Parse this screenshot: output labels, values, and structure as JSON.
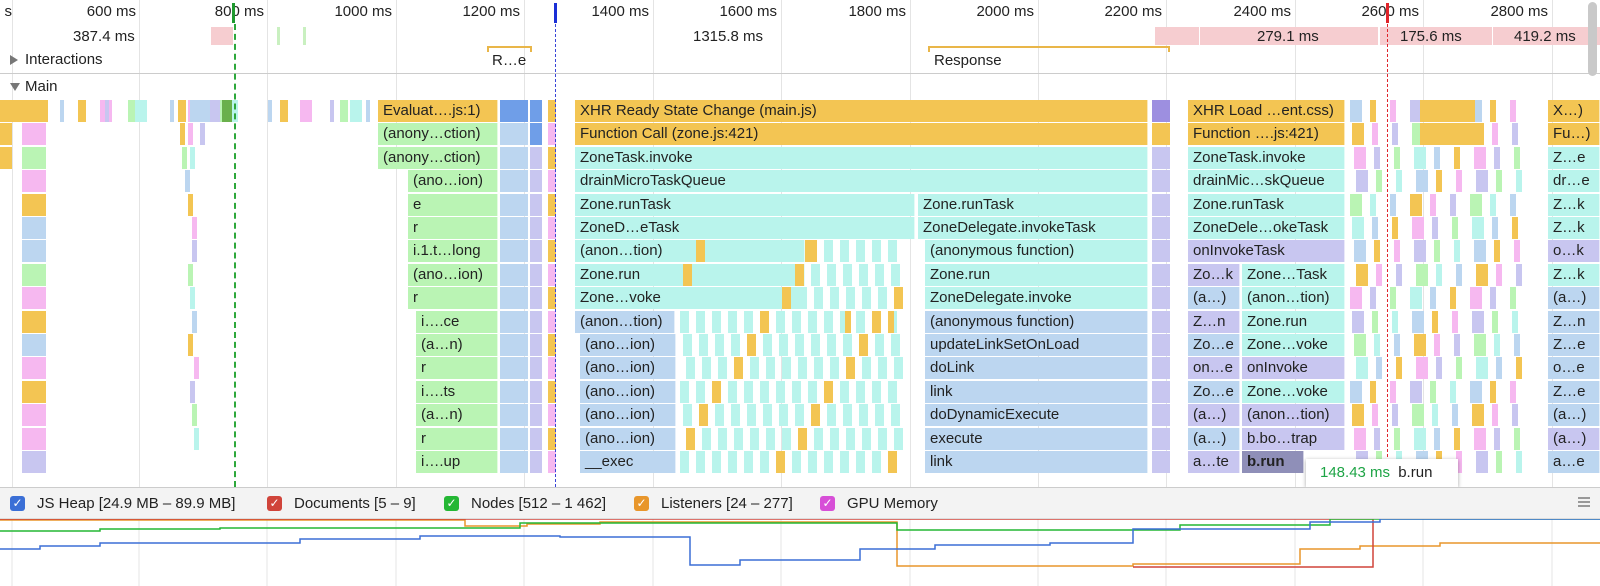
{
  "ruler": {
    "ticks": [
      "s",
      "600 ms",
      "800 ms",
      "1000 ms",
      "1200 ms",
      "1400 ms",
      "1600 ms",
      "1800 ms",
      "2000 ms",
      "2200 ms",
      "2400 ms",
      "2600 ms",
      "2800 ms"
    ]
  },
  "frames": {
    "f1": "387.4 ms",
    "f2": "1315.8 ms",
    "f3": "279.1 ms",
    "f4": "175.6 ms",
    "f5": "419.2 ms"
  },
  "interactions": {
    "label": "Interactions",
    "item1": "R…e",
    "item2": "Response"
  },
  "main": {
    "label": "Main",
    "col_a": [
      "Evaluat….js:1)",
      "(anony…ction)",
      "(anony…ction)",
      "(ano…ion)",
      "e",
      "r",
      "i.1.t…long",
      "(ano…ion)",
      "r",
      "i….ce",
      "(a…n)",
      "r",
      "i….ts",
      "(a…n)",
      "r",
      "i….up"
    ],
    "col_b": [
      "XHR Ready State Change (main.js)",
      "Function Call (zone.js:421)",
      "ZoneTask.invoke",
      "drainMicroTaskQueue",
      "Zone.runTask",
      "ZoneD…eTask",
      "(anon…tion)",
      "Zone.run",
      "Zone…voke",
      "(anon…tion)",
      "(ano…ion)",
      "(ano…ion)",
      "(ano…ion)",
      "(ano…ion)",
      "(ano…ion)",
      "__exec"
    ],
    "col_c": [
      "Zone.runTask",
      "ZoneDelegate.invokeTask",
      "(anonymous function)",
      "Zone.run",
      "ZoneDelegate.invoke",
      "(anonymous function)",
      "updateLinkSetOnLoad",
      "doLink",
      "link",
      "doDynamicExecute",
      "execute",
      "link"
    ],
    "col_d": [
      "XHR Load …ent.css)",
      "Function ….js:421)",
      "ZoneTask.invoke",
      "drainMic…skQueue",
      "Zone.runTask",
      "ZoneDele…okeTask",
      "onInvokeTask",
      "Zo…k",
      "(a…)",
      "Z…n",
      "Zo…e",
      "on…e",
      "Zo…e",
      "(a…)",
      "(a…)",
      "a…te"
    ],
    "col_e": [
      "Zone…Task",
      "(anon…tion)",
      "Zone.run",
      "Zone…voke",
      "onInvoke",
      "Zone…voke",
      "(anon…tion)",
      "b.bo…trap",
      "b.run"
    ],
    "col_f": [
      "X…)",
      "Fu…)",
      "Z…e",
      "dr…e",
      "Z…k",
      "Z…k",
      "o…k",
      "Z…k",
      "(a…)",
      "Z…n",
      "Z…e",
      "o…e",
      "Z…e",
      "(a…)",
      "(a…)",
      "a…e"
    ]
  },
  "tooltip": {
    "time": "148.43 ms",
    "name": "b.run"
  },
  "counters": {
    "js_heap": "JS Heap [24.9 MB – 89.9 MB]",
    "documents": "Documents [5 – 9]",
    "nodes": "Nodes [512 – 1 462]",
    "listeners": "Listeners [24 – 277]",
    "gpu": "GPU Memory"
  },
  "colors": {
    "js_heap": "#3b6fd6",
    "documents": "#d0443a",
    "nodes": "#24b734",
    "listeners": "#e8962b",
    "gpu": "#d74fd7",
    "yellow_event": "#f3c553",
    "teal_event": "#b9f4ec",
    "blue_event": "#bcd6f0",
    "green_event": "#baf4b4",
    "purple_event": "#c8c6f0",
    "pink_event": "#f6b8f0"
  }
}
